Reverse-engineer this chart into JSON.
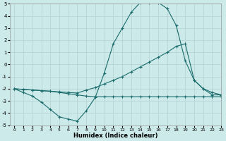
{
  "xlabel": "Humidex (Indice chaleur)",
  "xlim": [
    -0.5,
    23
  ],
  "ylim": [
    -5,
    5
  ],
  "background_color": "#cdeaea",
  "grid_color": "#b8d4d4",
  "line_color": "#1a6b6b",
  "xticks": [
    0,
    1,
    2,
    3,
    4,
    5,
    6,
    7,
    8,
    9,
    10,
    11,
    12,
    13,
    14,
    15,
    16,
    17,
    18,
    19,
    20,
    21,
    22,
    23
  ],
  "yticks": [
    -5,
    -4,
    -3,
    -2,
    -1,
    0,
    1,
    2,
    3,
    4,
    5
  ],
  "line1_x": [
    0,
    1,
    2,
    3,
    4,
    5,
    6,
    7,
    8,
    9,
    10,
    11,
    12,
    13,
    14,
    15,
    16,
    17,
    18,
    19,
    20,
    21,
    22,
    23
  ],
  "line1_y": [
    -2.0,
    -2.3,
    -2.6,
    -3.1,
    -3.7,
    -4.3,
    -4.5,
    -4.65,
    -3.8,
    -2.7,
    -0.7,
    1.7,
    3.0,
    4.3,
    5.1,
    5.1,
    5.1,
    4.6,
    3.2,
    0.3,
    -1.3,
    -2.0,
    -2.5,
    -2.5
  ],
  "line2_x": [
    0,
    1,
    2,
    3,
    4,
    5,
    6,
    7,
    8,
    9,
    10,
    11,
    12,
    13,
    14,
    15,
    16,
    17,
    18,
    19,
    20,
    21,
    22,
    23
  ],
  "line2_y": [
    -2.0,
    -2.05,
    -2.1,
    -2.15,
    -2.2,
    -2.25,
    -2.3,
    -2.35,
    -2.1,
    -1.9,
    -1.6,
    -1.3,
    -1.0,
    -0.6,
    -0.2,
    0.2,
    0.6,
    1.0,
    1.5,
    1.7,
    -1.3,
    -2.0,
    -2.3,
    -2.5
  ],
  "line3_x": [
    0,
    1,
    2,
    3,
    4,
    5,
    6,
    7,
    8,
    9,
    10,
    11,
    12,
    13,
    14,
    15,
    16,
    17,
    18,
    19,
    20,
    21,
    22,
    23
  ],
  "line3_y": [
    -2.0,
    -2.05,
    -2.1,
    -2.15,
    -2.2,
    -2.3,
    -2.4,
    -2.5,
    -2.6,
    -2.65,
    -2.65,
    -2.65,
    -2.65,
    -2.65,
    -2.65,
    -2.65,
    -2.65,
    -2.65,
    -2.65,
    -2.65,
    -2.65,
    -2.65,
    -2.65,
    -2.65
  ]
}
